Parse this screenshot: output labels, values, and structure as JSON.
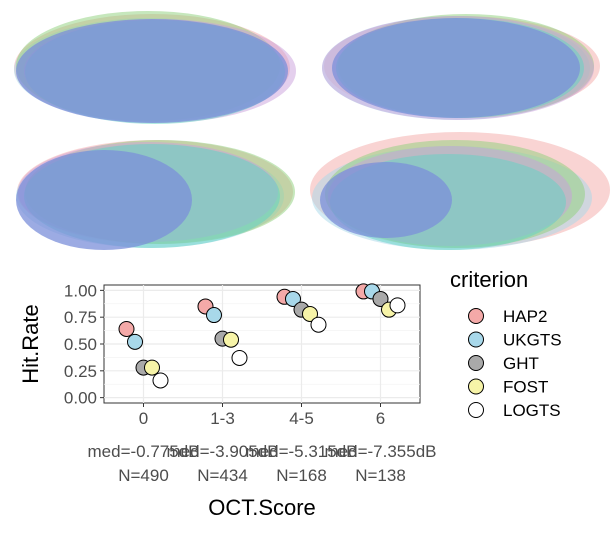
{
  "chart_data": {
    "type": "scatter",
    "title": "",
    "xlabel": "OCT.Score",
    "ylabel": "Hit.Rate",
    "ylim": [
      0,
      1
    ],
    "yticks": [
      "0.00",
      "0.25",
      "0.50",
      "0.75",
      "1.00"
    ],
    "categories": [
      "0",
      "1-3",
      "4-5",
      "6"
    ],
    "category_medians": [
      "med=-0.775dB",
      "med=-3.905dB",
      "med=-5.315dB",
      "med=-7.355dB"
    ],
    "category_counts": [
      "N=490",
      "N=434",
      "N=168",
      "N=138"
    ],
    "grid": true,
    "legend": {
      "title": "criterion",
      "placement": "right"
    },
    "series": [
      {
        "name": "HAP2",
        "color": "#f4a9a8",
        "values": [
          0.64,
          0.85,
          0.94,
          0.99
        ]
      },
      {
        "name": "UKGTS",
        "color": "#a8d8ea",
        "values": [
          0.52,
          0.77,
          0.92,
          0.99
        ]
      },
      {
        "name": "GHT",
        "color": "#a9a9a9",
        "values": [
          0.28,
          0.55,
          0.82,
          0.92
        ]
      },
      {
        "name": "FOST",
        "color": "#f7f4a8",
        "values": [
          0.28,
          0.54,
          0.78,
          0.82
        ]
      },
      {
        "name": "LOGTS",
        "color": "#ffffff",
        "values": [
          0.16,
          0.37,
          0.68,
          0.86
        ]
      }
    ]
  },
  "venn_colors": [
    "#f4a9a8",
    "#a8d8ea",
    "#8ecf7a",
    "#c9a0dc",
    "#5fd3c4",
    "#7b8fd9"
  ]
}
